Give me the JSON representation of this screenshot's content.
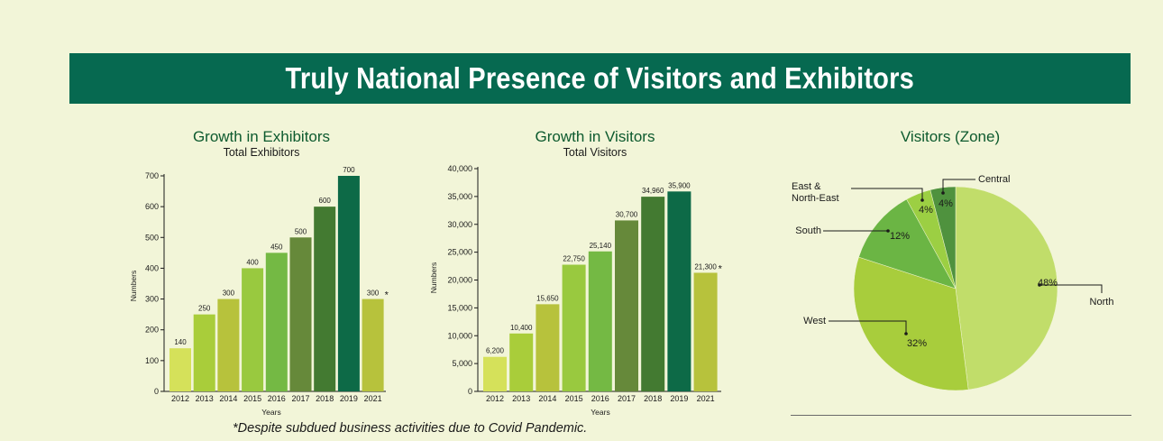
{
  "banner": {
    "title": "Truly National Presence of Visitors and Exhibitors"
  },
  "colors": {
    "banner": "#066950",
    "background": "#f2f5d8",
    "bars": [
      "#d5e15a",
      "#a9cd3a",
      "#b7c23c",
      "#99c93f",
      "#74b944",
      "#66893a",
      "#437a31",
      "#0d6a47",
      "#b7c23c"
    ],
    "pie": [
      "#c1dd6a",
      "#a8cd3c",
      "#6bb544",
      "#9ccf43",
      "#4f923e"
    ]
  },
  "footnote": "*Despite subdued business activities due to Covid Pandemic.",
  "chart_data": [
    {
      "type": "bar",
      "title": "Growth in Exhibitors",
      "subtitle": "Total Exhibitors",
      "xlabel": "Years",
      "ylabel": "Numbers",
      "categories": [
        "2012",
        "2013",
        "2014",
        "2015",
        "2016",
        "2017",
        "2018",
        "2019",
        "2021"
      ],
      "values": [
        140,
        250,
        300,
        400,
        450,
        500,
        600,
        700,
        300
      ],
      "value_labels": [
        "140",
        "250",
        "300",
        "400",
        "450",
        "500",
        "600",
        "700",
        "300"
      ],
      "asterisk_on": "2021",
      "yticks": [
        0,
        100,
        200,
        300,
        400,
        500,
        600,
        700
      ],
      "ytick_labels": [
        "0",
        "100",
        "200",
        "300",
        "400",
        "500",
        "600",
        "700"
      ],
      "ylim": [
        0,
        700
      ],
      "grid": false
    },
    {
      "type": "bar",
      "title": "Growth in Visitors",
      "subtitle": "Total Visitors",
      "xlabel": "Years",
      "ylabel": "Numbers",
      "categories": [
        "2012",
        "2013",
        "2014",
        "2015",
        "2016",
        "2017",
        "2018",
        "2019",
        "2021"
      ],
      "values": [
        6200,
        10400,
        15650,
        22750,
        25140,
        30700,
        34960,
        35900,
        21300
      ],
      "value_labels": [
        "6,200",
        "10,400",
        "15,650",
        "22,750",
        "25,140",
        "30,700",
        "34,960",
        "35,900",
        "21,300"
      ],
      "asterisk_on": "2021",
      "yticks": [
        0,
        5000,
        10000,
        15000,
        20000,
        25000,
        30000,
        35000,
        40000
      ],
      "ytick_labels": [
        "0",
        "5,000",
        "10,000",
        "15,000",
        "20,000",
        "25,000",
        "30,000",
        "35,000",
        "40,000"
      ],
      "ylim": [
        0,
        40000
      ],
      "grid": false
    },
    {
      "type": "pie",
      "title": "Visitors (Zone)",
      "slices": [
        {
          "name": "North",
          "value": 48,
          "label": "48%"
        },
        {
          "name": "West",
          "value": 32,
          "label": "32%"
        },
        {
          "name": "South",
          "value": 12,
          "label": "12%"
        },
        {
          "name": "East & North-East",
          "label_lines": [
            "East &",
            "North-East"
          ],
          "value": 4,
          "label": "4%"
        },
        {
          "name": "Central",
          "value": 4,
          "label": "4%"
        }
      ]
    }
  ]
}
